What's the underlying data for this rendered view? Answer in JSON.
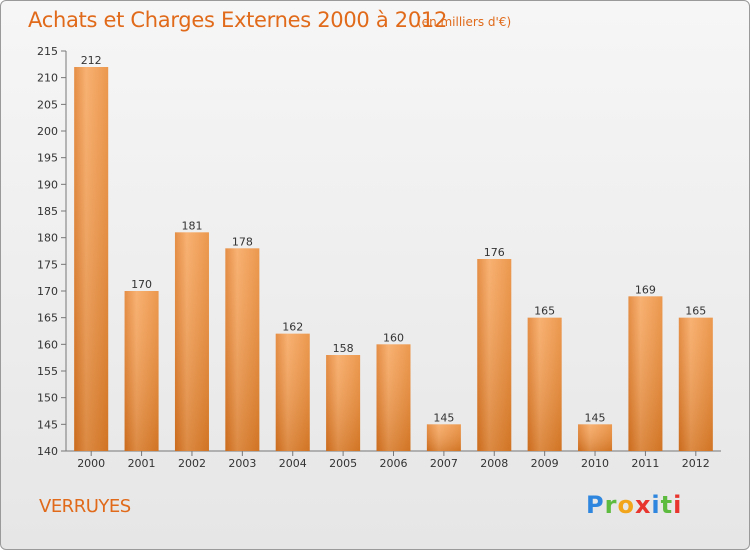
{
  "title": "Achats et Charges Externes 2000 à 2012",
  "subtitle": "(en milliers d'€)",
  "place": "VERRUYES",
  "logo": {
    "letters": [
      "P",
      "r",
      "o",
      "x",
      "i",
      "t",
      "i"
    ],
    "colors": [
      "#2e86de",
      "#5dbb3f",
      "#f2a51a",
      "#e8362f",
      "#2e86de",
      "#5dbb3f",
      "#e8362f"
    ]
  },
  "colors": {
    "accent": "#e06a1a",
    "bar_light": "#f7a45a",
    "bar_dark": "#d9731f"
  },
  "chart_data": {
    "type": "bar",
    "categories": [
      "2000",
      "2001",
      "2002",
      "2003",
      "2004",
      "2005",
      "2006",
      "2007",
      "2008",
      "2009",
      "2010",
      "2011",
      "2012"
    ],
    "values": [
      212,
      170,
      181,
      178,
      162,
      158,
      160,
      145,
      176,
      165,
      145,
      169,
      165
    ],
    "ylim": [
      140,
      215
    ],
    "yticks": [
      140,
      145,
      150,
      155,
      160,
      165,
      170,
      175,
      180,
      185,
      190,
      195,
      200,
      205,
      210,
      215
    ],
    "grid": false,
    "legend": "none"
  }
}
